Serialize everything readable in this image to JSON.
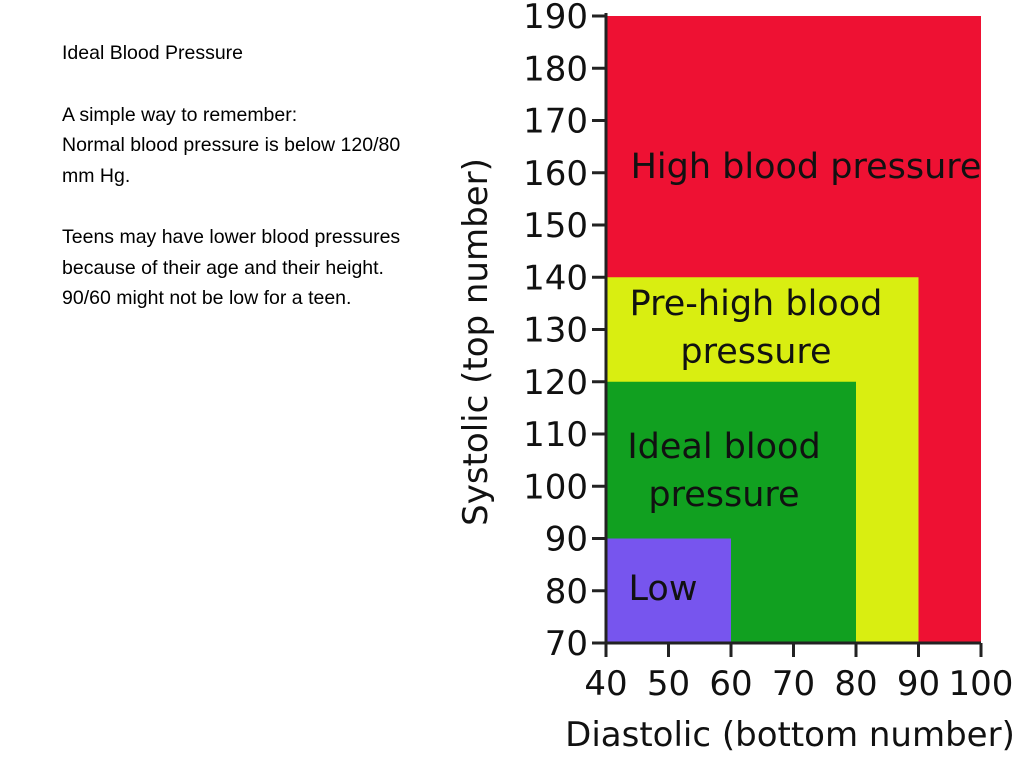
{
  "text_panel": {
    "heading": "Ideal Blood Pressure",
    "intro": "A simple way to remember:",
    "normal_line": "Normal blood pressure is below 120/80 mm Hg.",
    "teens_note": "Teens may have lower blood pressures because of their age and their height.  90/60 might not be low for a teen."
  },
  "chart_data": {
    "type": "area",
    "title": "",
    "xlabel": "Diastolic (bottom number)",
    "ylabel": "Systolic (top number)",
    "xlim": [
      40,
      100
    ],
    "ylim": [
      70,
      190
    ],
    "x_ticks": [
      40,
      50,
      60,
      70,
      80,
      90,
      100
    ],
    "y_ticks": [
      70,
      80,
      90,
      100,
      110,
      120,
      130,
      140,
      150,
      160,
      170,
      180,
      190
    ],
    "grid": false,
    "regions": [
      {
        "name": "High blood pressure",
        "label_lines": [
          "High blood pressure"
        ],
        "diastolic_max": 100,
        "systolic_max": 190,
        "color": "#ee1133"
      },
      {
        "name": "Pre-high blood pressure",
        "label_lines": [
          "Pre-high blood",
          "pressure"
        ],
        "diastolic_max": 90,
        "systolic_max": 140,
        "color": "#d9ee11"
      },
      {
        "name": "Ideal blood pressure",
        "label_lines": [
          "Ideal blood",
          "pressure"
        ],
        "diastolic_max": 80,
        "systolic_max": 120,
        "color": "#11a020"
      },
      {
        "name": "Low",
        "label_lines": [
          "Low"
        ],
        "diastolic_max": 60,
        "systolic_max": 90,
        "color": "#7755ee"
      }
    ],
    "colors": {
      "axis": "#222222",
      "text": "#111111"
    }
  }
}
